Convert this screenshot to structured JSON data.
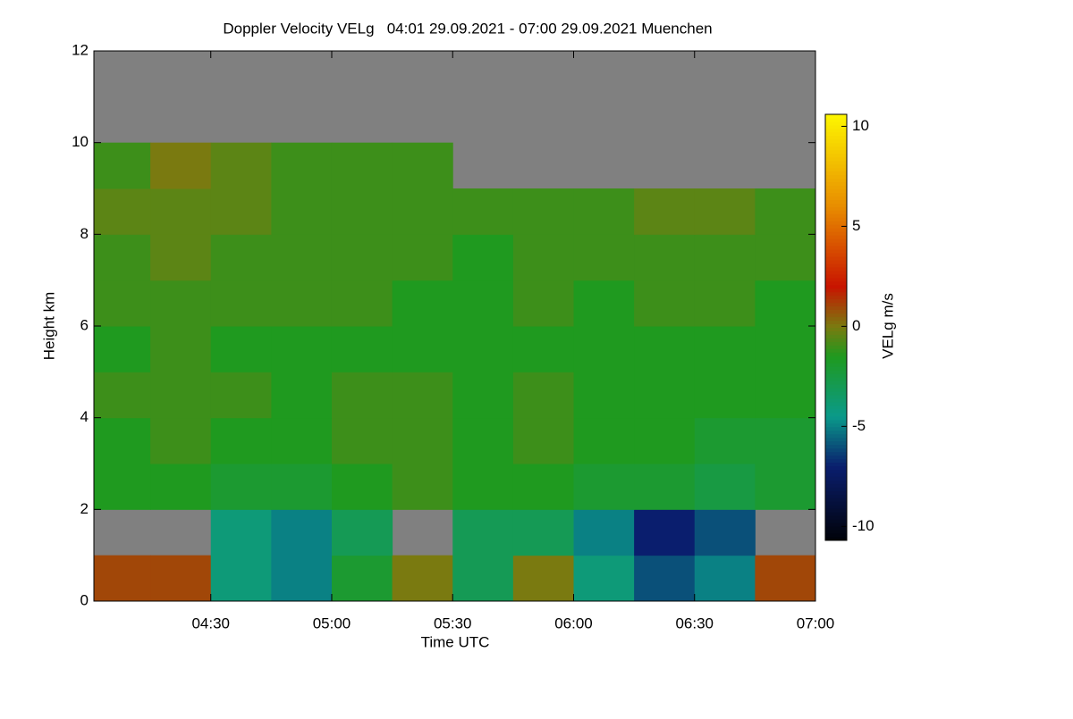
{
  "chart_data": {
    "type": "heatmap",
    "title": "Doppler Velocity VELg   04:01 29.09.2021 - 07:00 29.09.2021 Muenchen",
    "x_label": "Time UTC",
    "y_label": "Height km",
    "colorbar_label": "VELg m/s",
    "xlim": [
      4.0167,
      7.0
    ],
    "xticks": [
      {
        "value": 4.5,
        "label": "04:30"
      },
      {
        "value": 5.0,
        "label": "05:00"
      },
      {
        "value": 5.5,
        "label": "05:30"
      },
      {
        "value": 6.0,
        "label": "06:00"
      },
      {
        "value": 6.5,
        "label": "06:30"
      },
      {
        "value": 7.0,
        "label": "07:00"
      }
    ],
    "ylim": [
      0,
      12
    ],
    "yticks": [
      0,
      2,
      4,
      6,
      8,
      10,
      12
    ],
    "clim": [
      -10.7,
      10.6
    ],
    "cticks": [
      -10,
      -5,
      0,
      5,
      10
    ],
    "colorscale": [
      [
        -11,
        "#000000"
      ],
      [
        -7,
        "#0a1e6e"
      ],
      [
        -4.5,
        "#0a9a8a"
      ],
      [
        -1.5,
        "#1f9a1f"
      ],
      [
        0,
        "#7a7a10"
      ],
      [
        2,
        "#c81400"
      ],
      [
        6,
        "#e88c00"
      ],
      [
        11,
        "#ffff00"
      ]
    ],
    "missing_color": "#808080",
    "xbins": [
      4.0,
      4.25,
      4.5,
      4.75,
      5.0,
      5.25,
      5.5,
      5.75,
      6.0,
      6.25,
      6.5,
      6.75,
      7.0
    ],
    "ybins": [
      0,
      1,
      2,
      3,
      4,
      5,
      6,
      7,
      8,
      9,
      10,
      11,
      12
    ],
    "values": [
      [
        1,
        1,
        -4,
        -5,
        -2,
        0,
        -3,
        0,
        -4,
        -6,
        -5,
        1
      ],
      [
        null,
        null,
        -4,
        -5,
        -3,
        null,
        -3,
        -3,
        -5,
        -7,
        -6,
        null
      ],
      [
        -1.5,
        -1.5,
        -2,
        -2,
        -1.5,
        -1,
        -1.5,
        -1.5,
        -2,
        -2,
        -2.5,
        -2
      ],
      [
        -1.5,
        -1,
        -1.5,
        -1.5,
        -1,
        -1,
        -1.5,
        -1,
        -1.5,
        -1.5,
        -2,
        -2
      ],
      [
        -1,
        -1,
        -1,
        -1.5,
        -1,
        -1,
        -1.5,
        -1,
        -1.5,
        -1.5,
        -1.5,
        -1.5
      ],
      [
        -1.5,
        -1,
        -1.5,
        -1.5,
        -1.5,
        -1.5,
        -1.5,
        -1.5,
        -1.5,
        -1.5,
        -1.5,
        -1.5
      ],
      [
        -1,
        -1,
        -1,
        -1,
        -1,
        -1.5,
        -1.5,
        -1,
        -1.5,
        -1,
        -1,
        -1.5
      ],
      [
        -1,
        -0.5,
        -1,
        -1,
        -1,
        -1,
        -1.5,
        -1,
        -1,
        -1,
        -1,
        -1
      ],
      [
        -0.5,
        -0.5,
        -0.5,
        -1,
        -1,
        -1,
        -1,
        -1,
        -1,
        -0.5,
        -0.5,
        -1
      ],
      [
        -1,
        0,
        -0.5,
        -1,
        -1,
        -1,
        null,
        null,
        null,
        null,
        null,
        null
      ],
      [
        null,
        null,
        null,
        null,
        null,
        null,
        null,
        null,
        null,
        null,
        null,
        null
      ],
      [
        null,
        null,
        null,
        null,
        null,
        null,
        null,
        null,
        null,
        null,
        null,
        null
      ]
    ]
  }
}
